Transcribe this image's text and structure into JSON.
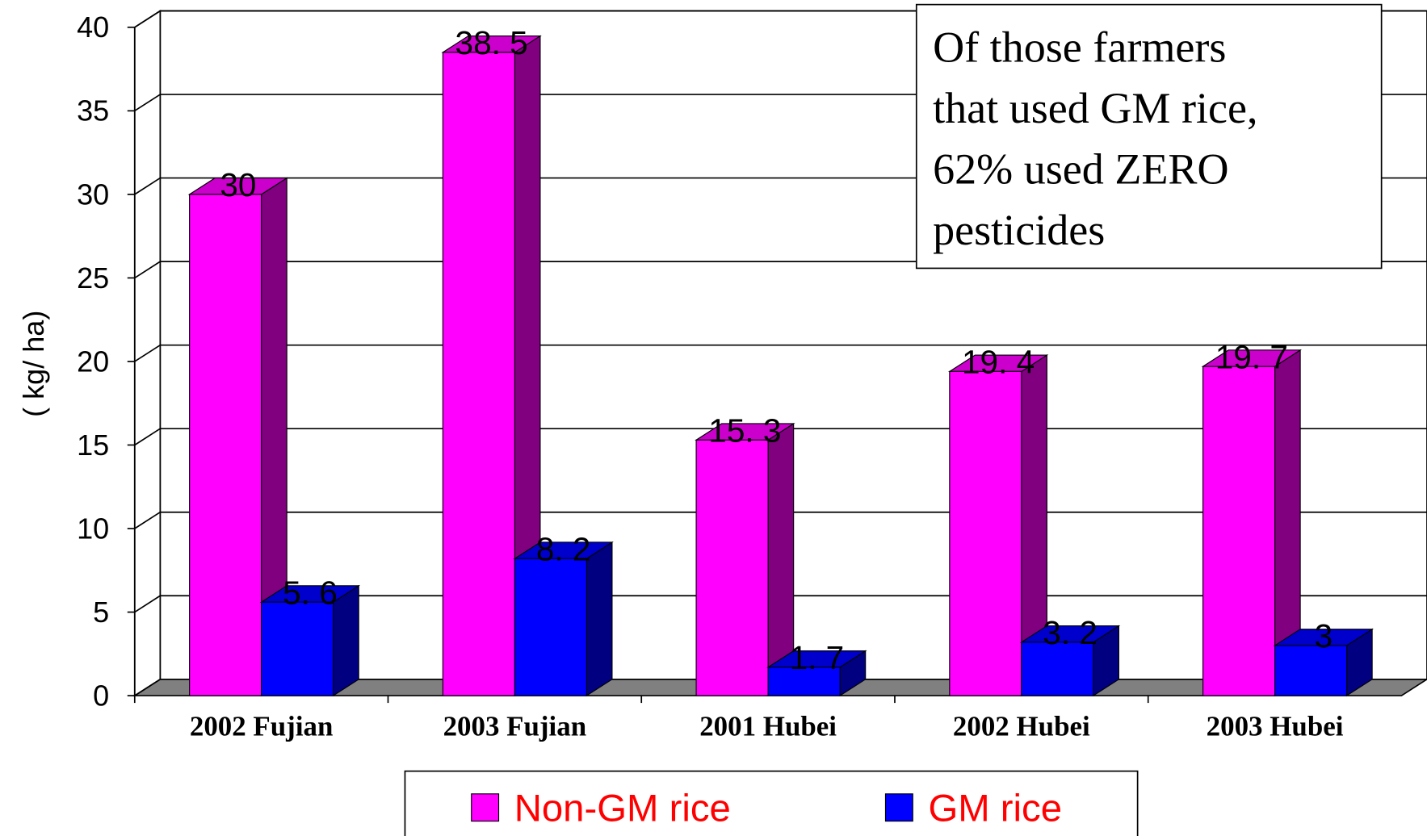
{
  "chart_data": {
    "type": "bar3d",
    "y_axis_label": "( kg/ ha)",
    "categories": [
      "2002 Fujian",
      "2003 Fujian",
      "2001 Hubei",
      "2002 Hubei",
      "2003 Hubei"
    ],
    "series": [
      {
        "name": "Non-GM rice",
        "color": "#ff00ff",
        "side_color": "#800080",
        "top_color": "#cc00cc",
        "values": [
          30,
          38.5,
          15.3,
          19.4,
          19.7
        ],
        "value_labels": [
          "30",
          "38. 5",
          "15. 3",
          "19. 4",
          "19. 7"
        ]
      },
      {
        "name": "GM rice",
        "color": "#0000ff",
        "side_color": "#000080",
        "top_color": "#0000cc",
        "values": [
          5.6,
          8.2,
          1.7,
          3.2,
          3
        ],
        "value_labels": [
          "5. 6",
          "8. 2",
          "1. 7",
          "3. 2",
          "3"
        ]
      }
    ],
    "ylim": [
      0,
      40
    ],
    "yticks": [
      0,
      5,
      10,
      15,
      20,
      25,
      30,
      35,
      40
    ],
    "grid": true,
    "annotation": [
      "Of those farmers",
      "that used GM rice,",
      "62% used ZERO",
      "pesticides"
    ],
    "legend": "bottom"
  }
}
